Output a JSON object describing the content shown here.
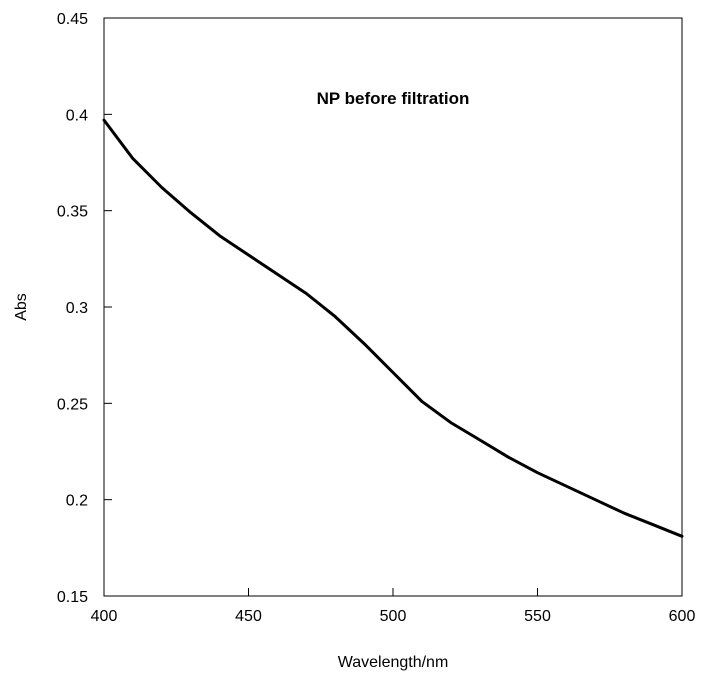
{
  "chart_data": {
    "type": "line",
    "title": "",
    "annotation": "NP before filtration",
    "xlabel": "Wavelength/nm",
    "ylabel": "Abs",
    "xlim": [
      400,
      600
    ],
    "ylim": [
      0.15,
      0.45
    ],
    "x_ticks": [
      400,
      450,
      500,
      550,
      600
    ],
    "x_tick_labels": [
      "400",
      "450",
      "500",
      "550",
      "600"
    ],
    "y_ticks": [
      0.15,
      0.2,
      0.25,
      0.3,
      0.35,
      0.4,
      0.45
    ],
    "y_tick_labels": [
      "0.15",
      "0.2",
      "0.25",
      "0.3",
      "0.35",
      "0.4",
      "0.45"
    ],
    "grid": false,
    "series": [
      {
        "color": "#000000",
        "x": [
          400,
          410,
          420,
          430,
          440,
          450,
          460,
          470,
          480,
          490,
          500,
          510,
          520,
          530,
          540,
          550,
          560,
          570,
          580,
          590,
          600
        ],
        "values": [
          0.397,
          0.377,
          0.362,
          0.349,
          0.337,
          0.327,
          0.317,
          0.307,
          0.295,
          0.281,
          0.266,
          0.251,
          0.24,
          0.231,
          0.222,
          0.214,
          0.207,
          0.2,
          0.193,
          0.187,
          0.181
        ]
      }
    ]
  }
}
